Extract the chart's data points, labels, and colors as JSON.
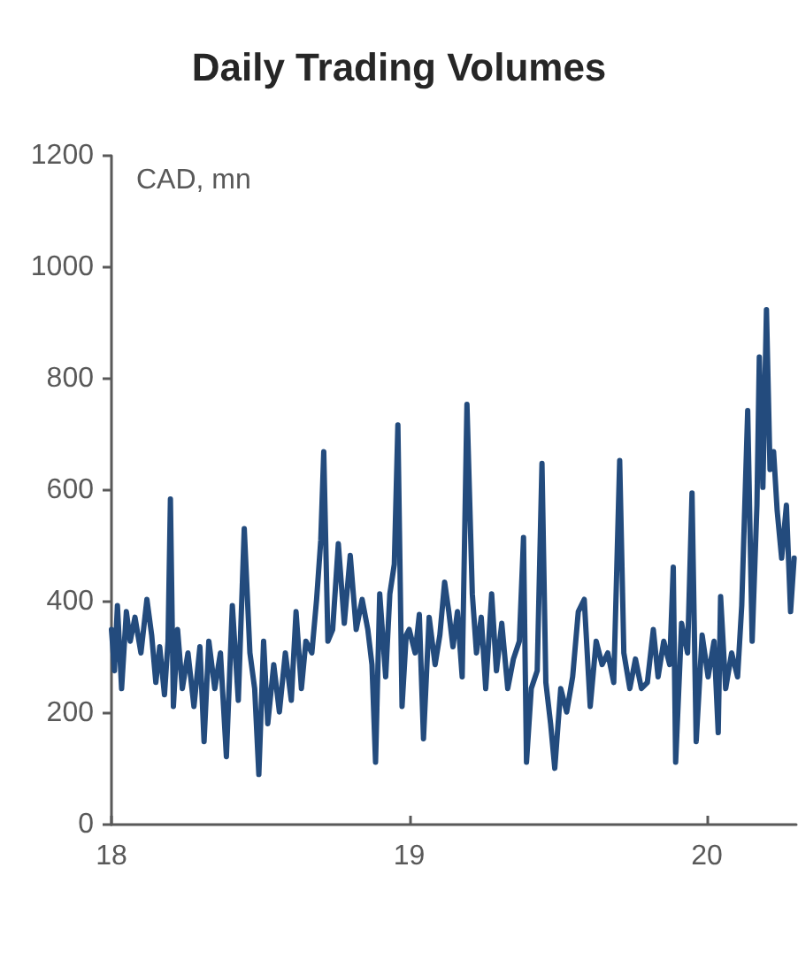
{
  "chart_data": {
    "type": "line",
    "title": "Daily Trading Volumes",
    "ylabel": "CAD, mn",
    "x": [
      18.0,
      18.01,
      18.02,
      18.034,
      18.05,
      18.063,
      18.079,
      18.099,
      18.119,
      18.135,
      18.149,
      18.162,
      18.178,
      18.19,
      18.198,
      18.208,
      18.222,
      18.238,
      18.257,
      18.277,
      18.297,
      18.311,
      18.327,
      18.347,
      18.366,
      18.386,
      18.406,
      18.426,
      18.446,
      18.465,
      18.481,
      18.495,
      18.511,
      18.525,
      18.545,
      18.564,
      18.584,
      18.604,
      18.62,
      18.638,
      18.653,
      18.673,
      18.689,
      18.703,
      18.713,
      18.727,
      18.743,
      18.762,
      18.782,
      18.802,
      18.822,
      18.842,
      18.861,
      18.875,
      18.887,
      18.901,
      18.921,
      18.935,
      18.95,
      18.962,
      18.976,
      18.99,
      19.0,
      19.02,
      19.034,
      19.048,
      19.067,
      19.087,
      19.103,
      19.119,
      19.133,
      19.147,
      19.162,
      19.178,
      19.194,
      19.212,
      19.226,
      19.242,
      19.257,
      19.277,
      19.293,
      19.311,
      19.331,
      19.35,
      19.37,
      19.384,
      19.394,
      19.41,
      19.43,
      19.446,
      19.459,
      19.475,
      19.489,
      19.509,
      19.529,
      19.549,
      19.568,
      19.588,
      19.608,
      19.628,
      19.648,
      19.667,
      19.687,
      19.707,
      19.721,
      19.741,
      19.76,
      19.78,
      19.8,
      19.82,
      19.836,
      19.855,
      19.875,
      19.887,
      19.895,
      19.915,
      19.935,
      19.95,
      19.964,
      19.984,
      20.004,
      20.024,
      20.038,
      20.046,
      20.063,
      20.083,
      20.103,
      20.117,
      20.137,
      20.152,
      20.168,
      20.176,
      20.188,
      20.2,
      20.212,
      20.224,
      20.236,
      20.251,
      20.267,
      20.281,
      20.293
    ],
    "series": [
      {
        "color": "#234b7d",
        "values": [
          350,
          276,
          393,
          244,
          382,
          329,
          372,
          308,
          404,
          340,
          255,
          319,
          233,
          329,
          584,
          212,
          350,
          244,
          308,
          212,
          319,
          149,
          329,
          244,
          308,
          122,
          393,
          223,
          531,
          308,
          244,
          90,
          329,
          181,
          287,
          202,
          308,
          223,
          382,
          244,
          329,
          308,
          404,
          510,
          669,
          329,
          350,
          504,
          361,
          483,
          350,
          404,
          350,
          287,
          112,
          414,
          265,
          414,
          467,
          717,
          212,
          340,
          350,
          308,
          377,
          154,
          372,
          287,
          340,
          435,
          382,
          319,
          382,
          265,
          754,
          414,
          308,
          372,
          244,
          414,
          276,
          361,
          244,
          297,
          329,
          515,
          112,
          244,
          276,
          648,
          255,
          181,
          101,
          244,
          202,
          265,
          382,
          404,
          212,
          329,
          287,
          308,
          255,
          653,
          308,
          244,
          297,
          244,
          255,
          350,
          265,
          329,
          287,
          462,
          112,
          361,
          308,
          595,
          149,
          340,
          265,
          329,
          165,
          409,
          244,
          308,
          265,
          393,
          743,
          329,
          573,
          839,
          605,
          924,
          637,
          669,
          563,
          478,
          573,
          382,
          478
        ]
      }
    ],
    "xlim": [
      18,
      20.3
    ],
    "xticks": [
      18,
      19,
      20
    ],
    "ylim": [
      0,
      1200
    ],
    "yticks": [
      0,
      200,
      400,
      600,
      800,
      1000,
      1200
    ],
    "grid": false,
    "marker": "none",
    "line_style": "solid"
  }
}
